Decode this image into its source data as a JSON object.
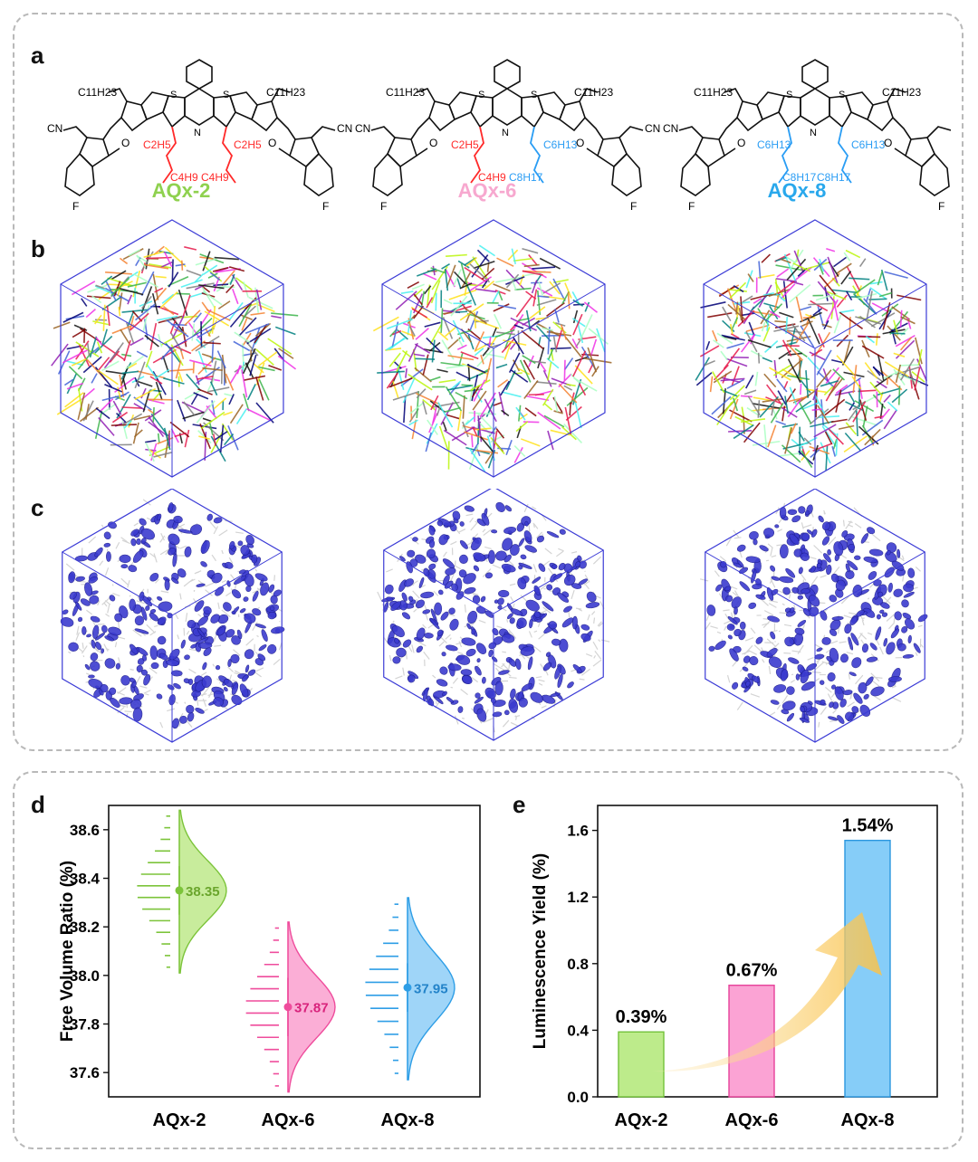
{
  "panel_labels": {
    "a": "a",
    "b": "b",
    "c": "c",
    "d": "d",
    "e": "e"
  },
  "molecules": [
    {
      "name": "AQx-2",
      "color": "#8fd14f",
      "chain_color": "#ff2a2a",
      "labels": {
        "c11": "C11H23",
        "chain1": "C2H5",
        "chain2": "C4H9",
        "cn": "CN",
        "f": "F",
        "s": "S",
        "n": "N",
        "o": "O"
      }
    },
    {
      "name": "AQx-6",
      "color": "#f7a8cf",
      "chain_color": "#ff2a2a",
      "chain_color2": "#2a9df4",
      "labels": {
        "c11": "C11H23",
        "chain1": "C2H5",
        "chain2": "C4H9",
        "chain3": "C6H13",
        "chain4": "C8H17",
        "cn": "CN",
        "f": "F",
        "s": "S",
        "n": "N",
        "o": "O"
      }
    },
    {
      "name": "AQx-8",
      "color": "#29a8ec",
      "chain_color": "#2a9df4",
      "labels": {
        "c11": "C11H23",
        "chain1": "C6H13",
        "chain2": "C8H17",
        "cn": "CN",
        "f": "F",
        "s": "S",
        "n": "N",
        "o": "O"
      }
    }
  ],
  "chart_data": [
    {
      "type": "violin",
      "panel": "d",
      "ylabel": "Free Volume Ratio (%)",
      "ylim": [
        37.5,
        38.7
      ],
      "yticks": [
        37.6,
        37.8,
        38.0,
        38.2,
        38.4,
        38.6
      ],
      "categories": [
        "AQx-2",
        "AQx-6",
        "AQx-8"
      ],
      "series": [
        {
          "name": "AQx-2",
          "mean": 38.35,
          "mean_label": "38.35",
          "min": 38.01,
          "max": 38.68,
          "err_low": 38.25,
          "err_high": 38.45,
          "fill": "#c8ec9c",
          "edge": "#7cc43a",
          "text_color": "#6aa52c"
        },
        {
          "name": "AQx-6",
          "mean": 37.87,
          "mean_label": "37.87",
          "min": 37.52,
          "max": 38.22,
          "err_low": 37.75,
          "err_high": 37.99,
          "fill": "#fbaed6",
          "edge": "#ef4c9c",
          "text_color": "#d8237c"
        },
        {
          "name": "AQx-8",
          "mean": 37.95,
          "mean_label": "37.95",
          "min": 37.57,
          "max": 38.32,
          "err_low": 37.85,
          "err_high": 38.05,
          "fill": "#9fd5f8",
          "edge": "#2e9ee6",
          "text_color": "#2383c9"
        }
      ]
    },
    {
      "type": "bar",
      "panel": "e",
      "ylabel": "Luminescence Yield (%)",
      "ylim": [
        0,
        1.75
      ],
      "yticks": [
        0.0,
        0.4,
        0.8,
        1.2,
        1.6
      ],
      "categories": [
        "AQx-2",
        "AQx-6",
        "AQx-8"
      ],
      "values": [
        0.39,
        0.67,
        1.54
      ],
      "value_labels": [
        "0.39%",
        "0.67%",
        "1.54%"
      ],
      "fills": [
        "#bdeb8b",
        "#fba3d4",
        "#86cdf8"
      ],
      "edges": [
        "#73c23a",
        "#e7419a",
        "#2b97df"
      ]
    }
  ]
}
